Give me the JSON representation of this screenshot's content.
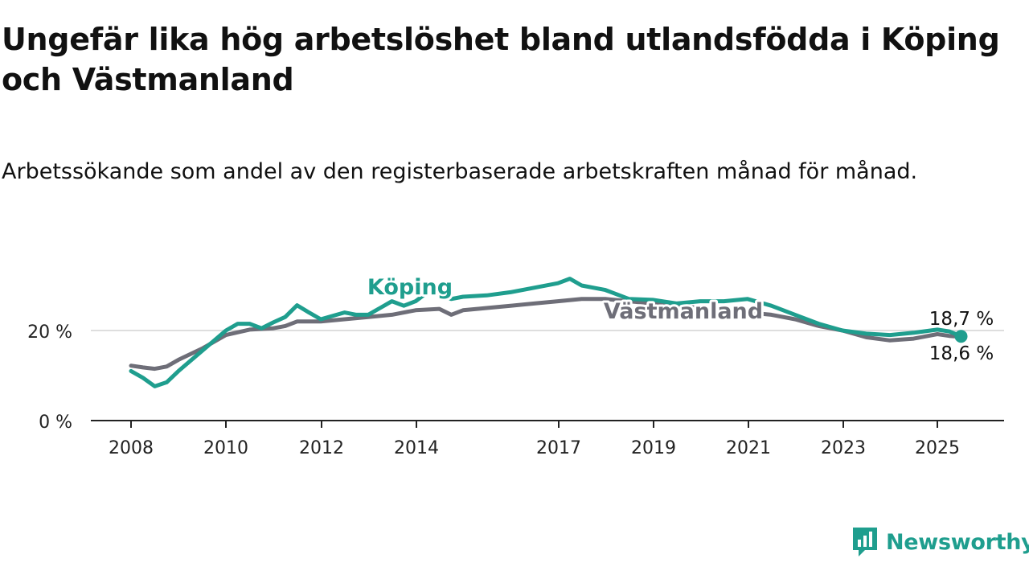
{
  "chart_data": {
    "type": "line",
    "title": "Ungefär lika hög arbetslöshet bland utlandsfödda i Köping och Västmanland",
    "subtitle": "Arbetssökande som andel av den registerbaserade arbetskraften månad för månad.",
    "xlabel": "",
    "ylabel": "",
    "x_ticks": [
      "2008",
      "2010",
      "2012",
      "2014",
      "2017",
      "2019",
      "2021",
      "2023",
      "2025"
    ],
    "y_ticks": [
      "0 %",
      "20 %"
    ],
    "ylim": [
      0,
      35
    ],
    "grid": "horizontal at 20 %",
    "legend": "inline labels",
    "series": [
      {
        "name": "Köping",
        "color": "#1f9e8e",
        "end_label": "18,7 %",
        "points": [
          [
            "2008-01",
            11
          ],
          [
            "2008-04",
            9.5
          ],
          [
            "2008-07",
            7.6
          ],
          [
            "2008-10",
            8.5
          ],
          [
            "2009-01",
            11
          ],
          [
            "2009-07",
            15.5
          ],
          [
            "2010-01",
            20
          ],
          [
            "2010-04",
            21.5
          ],
          [
            "2010-07",
            21.5
          ],
          [
            "2010-10",
            20.5
          ],
          [
            "2011-01",
            21.8
          ],
          [
            "2011-04",
            23
          ],
          [
            "2011-07",
            25.6
          ],
          [
            "2011-10",
            24
          ],
          [
            "2012-01",
            22.5
          ],
          [
            "2012-07",
            24
          ],
          [
            "2012-10",
            23.5
          ],
          [
            "2013-01",
            23.5
          ],
          [
            "2013-04",
            25
          ],
          [
            "2013-07",
            26.5
          ],
          [
            "2013-10",
            25.5
          ],
          [
            "2014-01",
            26.5
          ],
          [
            "2014-04",
            28.5
          ],
          [
            "2014-07",
            28
          ],
          [
            "2014-10",
            27
          ],
          [
            "2015-01",
            27.5
          ],
          [
            "2015-07",
            27.8
          ],
          [
            "2016-01",
            28.5
          ],
          [
            "2016-07",
            29.5
          ],
          [
            "2017-01",
            30.5
          ],
          [
            "2017-04",
            31.5
          ],
          [
            "2017-07",
            30
          ],
          [
            "2017-10",
            29.5
          ],
          [
            "2018-01",
            29
          ],
          [
            "2018-04",
            28
          ],
          [
            "2018-07",
            27
          ],
          [
            "2019-01",
            26.8
          ],
          [
            "2019-07",
            26
          ],
          [
            "2020-01",
            26.5
          ],
          [
            "2020-07",
            26.5
          ],
          [
            "2021-01",
            27
          ],
          [
            "2021-07",
            25.5
          ],
          [
            "2022-01",
            23.5
          ],
          [
            "2022-07",
            21.5
          ],
          [
            "2023-01",
            20
          ],
          [
            "2023-07",
            19.3
          ],
          [
            "2024-01",
            19
          ],
          [
            "2024-07",
            19.5
          ],
          [
            "2025-01",
            20.2
          ],
          [
            "2025-04",
            19.8
          ],
          [
            "2025-07",
            18.7
          ]
        ]
      },
      {
        "name": "Västmanland",
        "color": "#6e6e78",
        "end_label": "18,6 %",
        "points": [
          [
            "2008-01",
            12.2
          ],
          [
            "2008-04",
            11.8
          ],
          [
            "2008-07",
            11.5
          ],
          [
            "2008-10",
            12
          ],
          [
            "2009-01",
            13.5
          ],
          [
            "2009-07",
            16
          ],
          [
            "2010-01",
            19
          ],
          [
            "2010-07",
            20.2
          ],
          [
            "2011-01",
            20.5
          ],
          [
            "2011-04",
            21
          ],
          [
            "2011-07",
            22
          ],
          [
            "2012-01",
            22
          ],
          [
            "2012-07",
            22.5
          ],
          [
            "2013-01",
            23
          ],
          [
            "2013-07",
            23.5
          ],
          [
            "2014-01",
            24.5
          ],
          [
            "2014-07",
            24.8
          ],
          [
            "2014-10",
            23.5
          ],
          [
            "2015-01",
            24.5
          ],
          [
            "2015-07",
            25
          ],
          [
            "2016-01",
            25.5
          ],
          [
            "2016-07",
            26
          ],
          [
            "2017-01",
            26.5
          ],
          [
            "2017-07",
            27
          ],
          [
            "2018-01",
            27
          ],
          [
            "2018-07",
            26.5
          ],
          [
            "2019-01",
            26
          ],
          [
            "2019-07",
            25.5
          ],
          [
            "2020-01",
            25
          ],
          [
            "2020-07",
            24.5
          ],
          [
            "2021-01",
            24
          ],
          [
            "2021-07",
            23.5
          ],
          [
            "2022-01",
            22.5
          ],
          [
            "2022-07",
            21
          ],
          [
            "2023-01",
            20
          ],
          [
            "2023-07",
            18.5
          ],
          [
            "2024-01",
            17.8
          ],
          [
            "2024-07",
            18.2
          ],
          [
            "2025-01",
            19.2
          ],
          [
            "2025-04",
            18.8
          ],
          [
            "2025-07",
            18.6
          ]
        ]
      }
    ],
    "brand": "Newsworthy"
  }
}
